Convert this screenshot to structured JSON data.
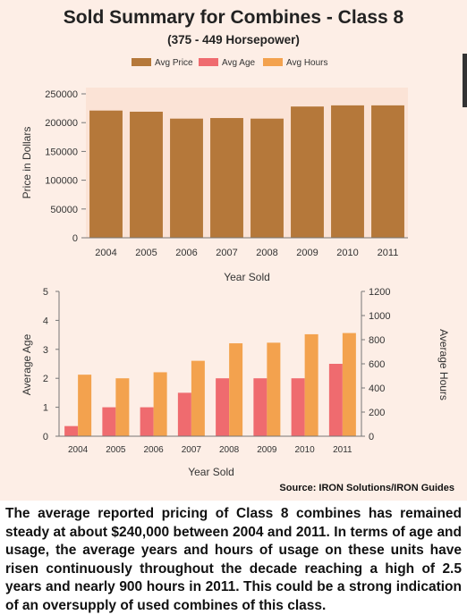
{
  "title": "Sold Summary for Combines - Class 8",
  "subtitle": "(375 - 449 Horsepower)",
  "source": "Source: IRON Solutions/IRON Guides",
  "description": "The average reported pricing of Class 8 combines has remained steady at about $240,000 between 2004 and 2011. In terms of age and usage, the average years and hours of usage on these units have risen continuously throughout the decade reaching a high of 2.5 years and nearly 900 hours in 2011. This could be a strong indication of an oversupply of used combines of this class.",
  "legend": [
    {
      "label": "Avg Price",
      "color": "#b5783a"
    },
    {
      "label": "Avg Age",
      "color": "#ef6b6f"
    },
    {
      "label": "Avg Hours",
      "color": "#f3a24e"
    }
  ],
  "chart_data": [
    {
      "type": "bar",
      "categories": [
        "2004",
        "2005",
        "2006",
        "2007",
        "2008",
        "2009",
        "2010",
        "2011"
      ],
      "series": [
        {
          "name": "Avg Price",
          "color": "#b5783a",
          "values": [
            221000,
            219000,
            207000,
            208000,
            207000,
            228000,
            230000,
            230000
          ]
        }
      ],
      "xlabel": "Year Sold",
      "ylabel": "Price in Dollars",
      "ylim": [
        0,
        250000
      ],
      "yticks": [
        "0",
        "50000",
        "100000",
        "150000",
        "200000",
        "250000"
      ]
    },
    {
      "type": "bar",
      "categories": [
        "2004",
        "2005",
        "2006",
        "2007",
        "2008",
        "2009",
        "2010",
        "2011"
      ],
      "series": [
        {
          "name": "Avg Age",
          "color": "#ef6b6f",
          "axis": "left",
          "values": [
            0.35,
            1.0,
            1.0,
            1.5,
            2.0,
            2.0,
            2.0,
            2.5
          ]
        },
        {
          "name": "Avg Hours",
          "color": "#f3a24e",
          "axis": "right",
          "values": [
            510,
            480,
            530,
            625,
            770,
            775,
            845,
            855
          ]
        }
      ],
      "xlabel": "Year Sold",
      "ylabel": "Average Age",
      "y2label": "Average Hours",
      "ylim": [
        0,
        5
      ],
      "y2lim": [
        0,
        1200
      ],
      "yticks": [
        "0",
        "1",
        "2",
        "3",
        "4",
        "5"
      ],
      "y2ticks": [
        "0",
        "200",
        "400",
        "600",
        "800",
        "1000",
        "1200"
      ]
    }
  ]
}
